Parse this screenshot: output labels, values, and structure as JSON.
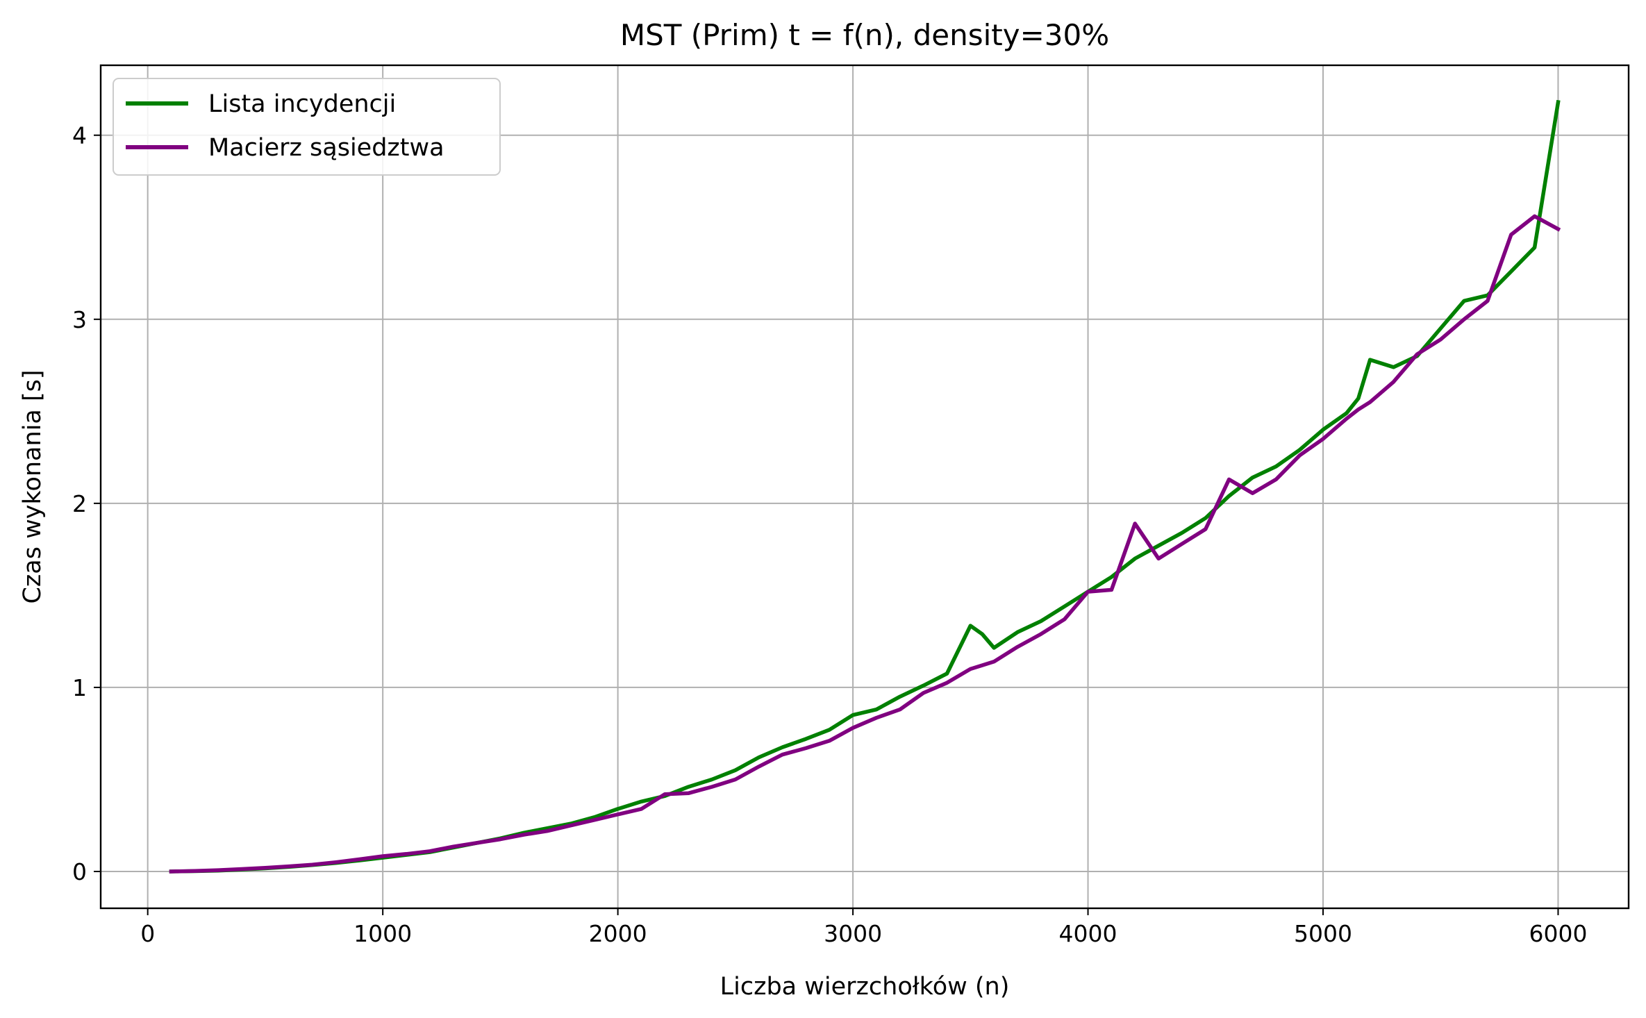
{
  "chart_data": {
    "type": "line",
    "title": "MST (Prim) t = f(n), density=30%",
    "xlabel": "Liczba wierzchołków (n)",
    "ylabel": "Czas wykonania [s]",
    "xlim": [
      -200,
      6300
    ],
    "ylim": [
      -0.2,
      4.38
    ],
    "xticks": [
      0,
      1000,
      2000,
      3000,
      4000,
      5000,
      6000
    ],
    "xtick_labels": [
      "0",
      "1000",
      "2000",
      "3000",
      "4000",
      "5000",
      "6000"
    ],
    "yticks": [
      0,
      1,
      2,
      3,
      4
    ],
    "ytick_labels": [
      "0",
      "1",
      "2",
      "3",
      "4"
    ],
    "grid": true,
    "legend_position": "top-left",
    "x": [
      100,
      200,
      300,
      400,
      500,
      600,
      700,
      800,
      900,
      1000,
      1100,
      1200,
      1300,
      1400,
      1500,
      1600,
      1700,
      1800,
      1900,
      2000,
      2100,
      2200,
      2300,
      2400,
      2500,
      2600,
      2700,
      2800,
      2900,
      3000,
      3100,
      3200,
      3300,
      3400,
      3500,
      3550,
      3600,
      3700,
      3800,
      3900,
      4000,
      4100,
      4200,
      4300,
      4400,
      4500,
      4600,
      4700,
      4800,
      4900,
      5000,
      5100,
      5150,
      5200,
      5300,
      5400,
      5500,
      5600,
      5700,
      5800,
      5900,
      6000
    ],
    "series": [
      {
        "name": "Lista incydencji",
        "color": "#008000",
        "values": [
          0.0,
          0.002,
          0.005,
          0.01,
          0.017,
          0.025,
          0.035,
          0.046,
          0.06,
          0.075,
          0.09,
          0.105,
          0.13,
          0.155,
          0.18,
          0.21,
          0.235,
          0.26,
          0.295,
          0.34,
          0.38,
          0.41,
          0.46,
          0.5,
          0.55,
          0.62,
          0.675,
          0.72,
          0.77,
          0.85,
          0.88,
          0.95,
          1.01,
          1.075,
          1.335,
          1.29,
          1.215,
          1.3,
          1.36,
          1.44,
          1.52,
          1.6,
          1.7,
          1.77,
          1.84,
          1.92,
          2.04,
          2.14,
          2.2,
          2.29,
          2.4,
          2.49,
          2.57,
          2.78,
          2.74,
          2.8,
          2.95,
          3.1,
          3.13,
          3.26,
          3.39,
          4.18
        ]
      },
      {
        "name": "Macierz sąsiedztwa",
        "color": "#800080",
        "values": [
          0.0,
          0.003,
          0.007,
          0.013,
          0.02,
          0.028,
          0.037,
          0.05,
          0.066,
          0.083,
          0.095,
          0.11,
          0.135,
          0.155,
          0.175,
          0.2,
          0.22,
          0.25,
          0.28,
          0.31,
          0.34,
          0.42,
          0.425,
          0.46,
          0.5,
          0.57,
          0.635,
          0.67,
          0.71,
          0.78,
          0.835,
          0.88,
          0.97,
          1.025,
          1.1,
          1.12,
          1.14,
          1.22,
          1.29,
          1.37,
          1.52,
          1.53,
          1.89,
          1.7,
          1.78,
          1.86,
          2.13,
          2.055,
          2.13,
          2.26,
          2.35,
          2.46,
          2.51,
          2.55,
          2.66,
          2.81,
          2.89,
          3.0,
          3.1,
          3.46,
          3.56,
          3.49
        ]
      }
    ]
  }
}
